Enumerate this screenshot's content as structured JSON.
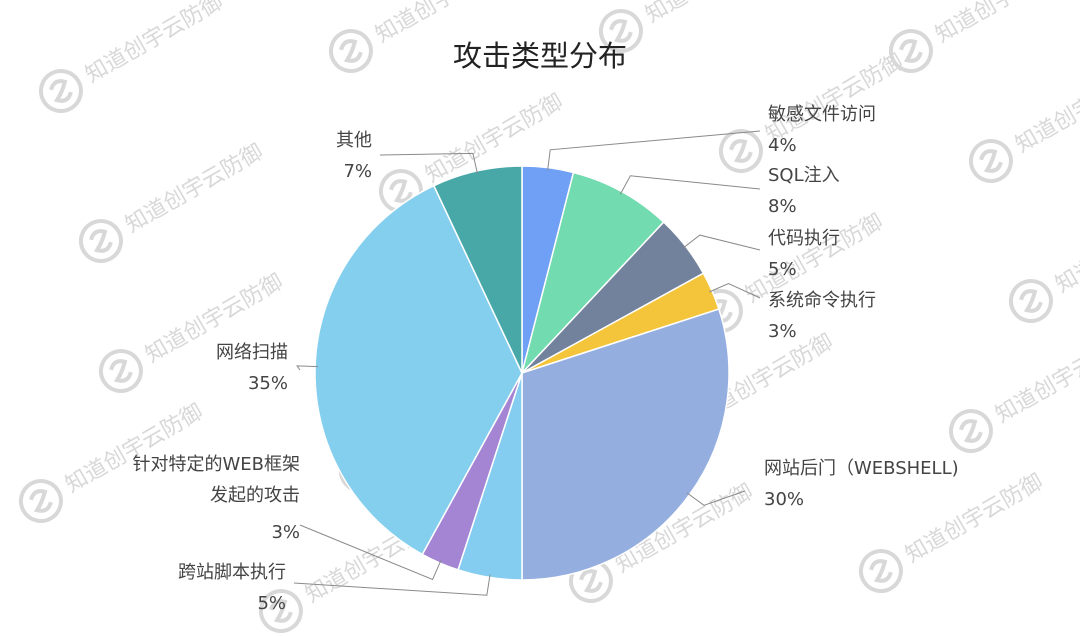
{
  "watermark": {
    "text": "知道创宇云防御",
    "icon": "cloud-shield-logo"
  },
  "chart_data": {
    "type": "pie",
    "title": "攻击类型分布",
    "start_angle_deg": 0,
    "direction": "clockwise",
    "legend": "none",
    "slices": [
      {
        "label_lines": [
          "敏感文件访问"
        ],
        "value": 4,
        "value_label": "4%",
        "color": "#6fa0f5"
      },
      {
        "label_lines": [
          "SQL注入"
        ],
        "value": 8,
        "value_label": "8%",
        "color": "#72dbaf"
      },
      {
        "label_lines": [
          "代码执行"
        ],
        "value": 5,
        "value_label": "5%",
        "color": "#72829d"
      },
      {
        "label_lines": [
          "系统命令执行"
        ],
        "value": 3,
        "value_label": "3%",
        "color": "#f4c53b"
      },
      {
        "label_lines": [
          "网站后门（WEBSHELL)"
        ],
        "value": 30,
        "value_label": "30%",
        "color": "#95aee0"
      },
      {
        "label_lines": [
          "跨站脚本执行"
        ],
        "value": 5,
        "value_label": "5%",
        "color": "#85cdf0"
      },
      {
        "label_lines": [
          "针对特定的WEB框架",
          "发起的攻击"
        ],
        "value": 3,
        "value_label": "3%",
        "color": "#a385d4"
      },
      {
        "label_lines": [
          "网络扫描"
        ],
        "value": 35,
        "value_label": "35%",
        "color": "#84ceee"
      },
      {
        "label_lines": [
          "其他"
        ],
        "value": 7,
        "value_label": "7%",
        "color": "#48a8a8"
      }
    ]
  }
}
